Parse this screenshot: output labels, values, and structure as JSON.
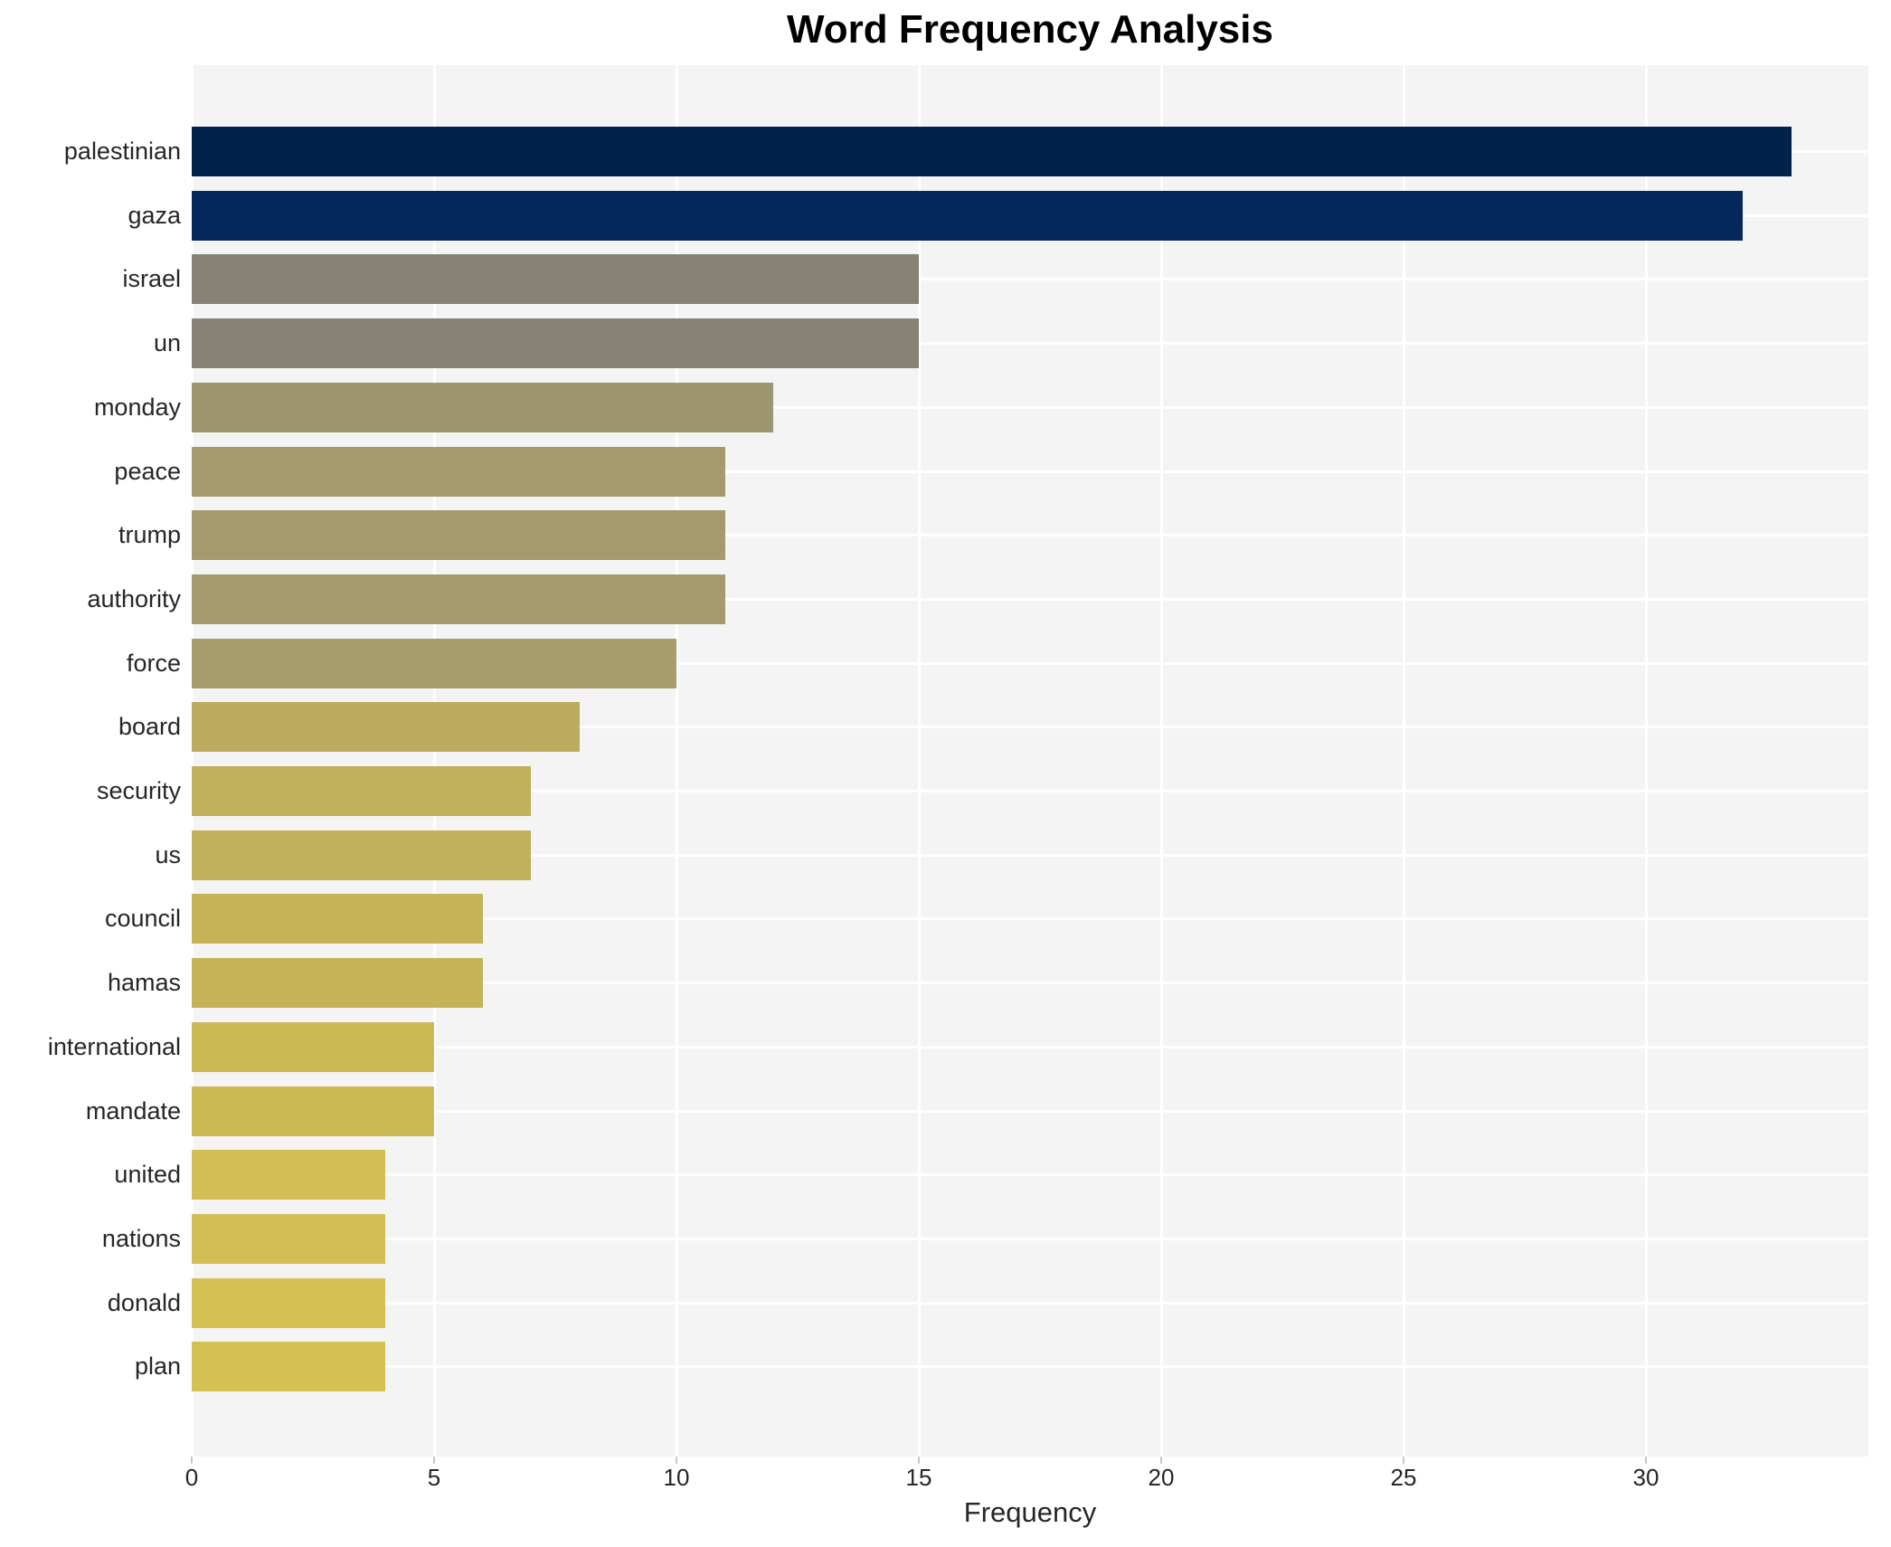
{
  "chart_data": {
    "type": "bar",
    "orientation": "horizontal",
    "title": "Word Frequency Analysis",
    "xlabel": "Frequency",
    "ylabel": "",
    "categories": [
      "palestinian",
      "gaza",
      "israel",
      "un",
      "monday",
      "peace",
      "trump",
      "authority",
      "force",
      "board",
      "security",
      "us",
      "council",
      "hamas",
      "international",
      "mandate",
      "united",
      "nations",
      "donald",
      "plan"
    ],
    "values": [
      33,
      32,
      15,
      15,
      12,
      11,
      11,
      11,
      10,
      8,
      7,
      7,
      6,
      6,
      5,
      5,
      4,
      4,
      4,
      4
    ],
    "bar_colors": [
      "#00234d",
      "#05295c",
      "#878276",
      "#878276",
      "#9e9571",
      "#a49a6e",
      "#a49a6e",
      "#a49a6e",
      "#a89e6c",
      "#bcab5f",
      "#c0af5b",
      "#c0af5b",
      "#c5b457",
      "#c5b457",
      "#cbb954",
      "#cbb954",
      "#d2bf53",
      "#d2bf53",
      "#d4c053",
      "#d4c053"
    ],
    "xticks": [
      0,
      5,
      10,
      15,
      20,
      25,
      30
    ],
    "xlim": [
      0,
      34.6
    ],
    "grid": "on",
    "legend": "none",
    "colors": {
      "plot_background": "#f4f4f4",
      "grid_line": "#ffffff",
      "tick_text": "#262626",
      "title_text": "#000000"
    }
  }
}
